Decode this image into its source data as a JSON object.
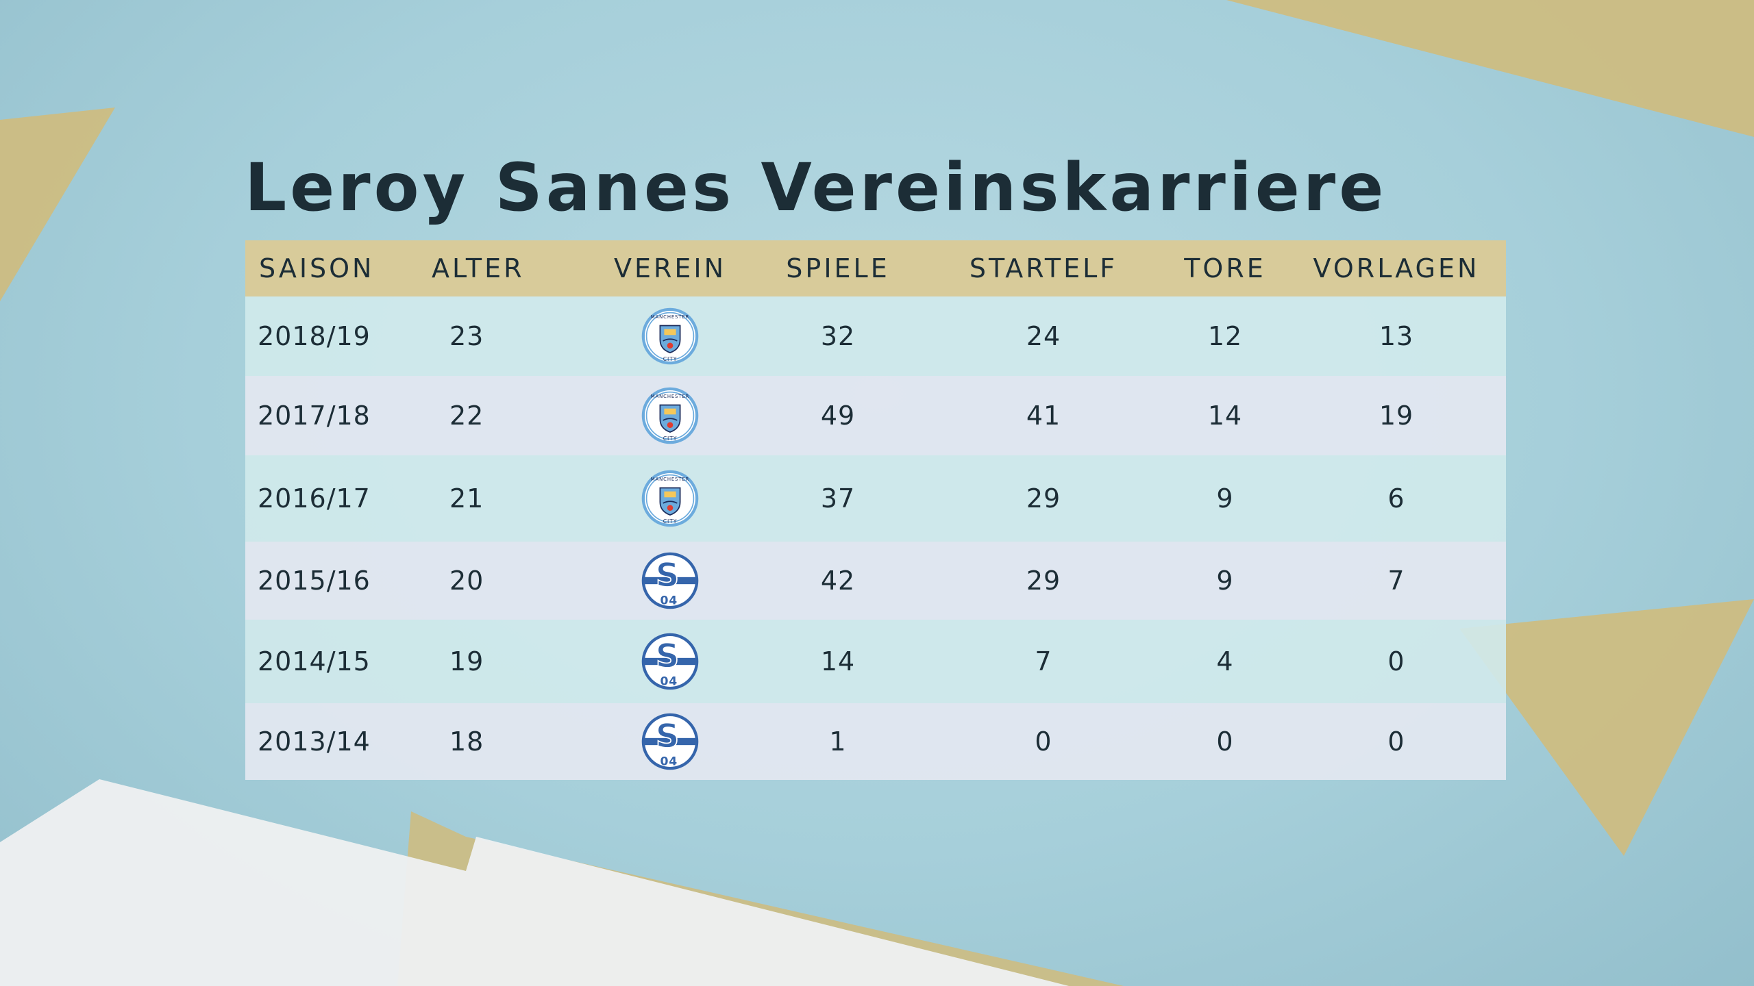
{
  "title": "Leroy Sanes Vereinskarriere",
  "colors": {
    "header_band": "#d8cb9a",
    "title_text": "#1c2d36",
    "row_teal": "#d0e9ec",
    "row_grey": "#e2e7f0",
    "accent_gold": "#cdbd82",
    "mancity_blue": "#6cabdd",
    "schalke_blue": "#3565ab"
  },
  "columns": [
    "SAISON",
    "ALTER",
    "VEREIN",
    "SPIELE",
    "STARTELF",
    "TORE",
    "VORLAGEN"
  ],
  "rows": [
    {
      "saison": "2018/19",
      "alter": "23",
      "verein": "manchester-city-logo",
      "spiele": "32",
      "startelf": "24",
      "tore": "12",
      "vorlagen": "13"
    },
    {
      "saison": "2017/18",
      "alter": "22",
      "verein": "manchester-city-logo",
      "spiele": "49",
      "startelf": "41",
      "tore": "14",
      "vorlagen": "19"
    },
    {
      "saison": "2016/17",
      "alter": "21",
      "verein": "manchester-city-logo",
      "spiele": "37",
      "startelf": "29",
      "tore": "9",
      "vorlagen": "6"
    },
    {
      "saison": "2015/16",
      "alter": "20",
      "verein": "schalke-04-logo",
      "spiele": "42",
      "startelf": "29",
      "tore": "9",
      "vorlagen": "7"
    },
    {
      "saison": "2014/15",
      "alter": "19",
      "verein": "schalke-04-logo",
      "spiele": "14",
      "startelf": "7",
      "tore": "4",
      "vorlagen": "0"
    },
    {
      "saison": "2013/14",
      "alter": "18",
      "verein": "schalke-04-logo",
      "spiele": "1",
      "startelf": "0",
      "tore": "0",
      "vorlagen": "0"
    }
  ],
  "logo_text": {
    "mancity_top": "MANCHESTER",
    "mancity_bottom": "CITY",
    "schalke_letter": "S",
    "schalke_number": "04"
  }
}
